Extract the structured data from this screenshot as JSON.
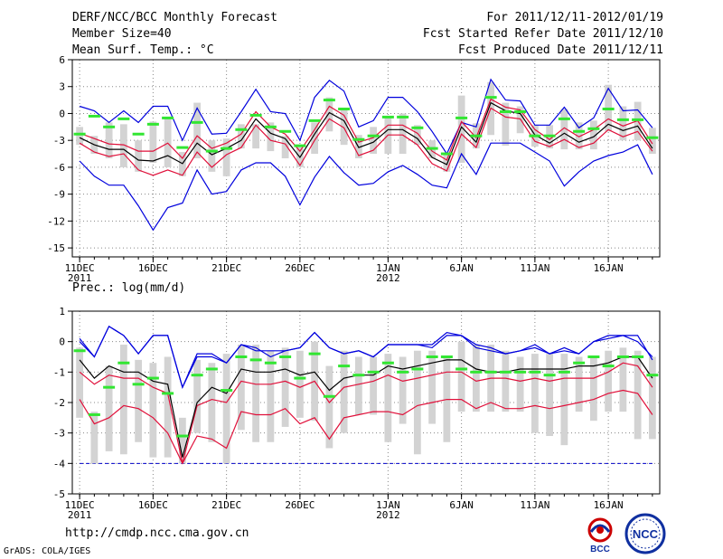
{
  "header": {
    "title": "DERF/NCC/BCC Monthly Forecast",
    "member_size": "Member Size=40",
    "variable": "Mean Surf. Temp.: °C",
    "period": "For 2011/12/11-2012/01/19",
    "refer_date": "Fcst Started Refer Date 2011/12/10",
    "produced_date": "Fcst Produced Date 2011/12/11"
  },
  "footer": {
    "url": "http://cmdp.ncc.cma.gov.cn",
    "credit": "GrADS: COLA/IGES",
    "logo_bcc": "BCC",
    "logo_ncc": "NCC"
  },
  "colors": {
    "box": "#d3d3d3",
    "median": "#32e632",
    "mean": "#000000",
    "spread": "#e0103a",
    "minmax": "#0000dd",
    "grid": "#888888",
    "dashed_line": "#0000cc"
  },
  "chart_data": [
    {
      "type": "box",
      "title": "Mean Surf. Temp.: °C",
      "ylim": [
        -16,
        6
      ],
      "yticks": [
        6,
        3,
        0,
        -3,
        -6,
        -9,
        -12,
        -15
      ],
      "xlabels": [
        {
          "day": 1,
          "label": "11DEC",
          "sub": "2011"
        },
        {
          "day": 6,
          "label": "16DEC",
          "sub": ""
        },
        {
          "day": 11,
          "label": "21DEC",
          "sub": ""
        },
        {
          "day": 16,
          "label": "26DEC",
          "sub": ""
        },
        {
          "day": 22,
          "label": "1JAN",
          "sub": "2012"
        },
        {
          "day": 27,
          "label": "6JAN",
          "sub": ""
        },
        {
          "day": 32,
          "label": "11JAN",
          "sub": ""
        },
        {
          "day": 37,
          "label": "16JAN",
          "sub": ""
        }
      ],
      "x": [
        1,
        2,
        3,
        4,
        5,
        6,
        7,
        8,
        9,
        10,
        11,
        12,
        13,
        14,
        15,
        16,
        17,
        18,
        19,
        20,
        21,
        22,
        23,
        24,
        25,
        26,
        27,
        28,
        29,
        30,
        31,
        32,
        33,
        34,
        35,
        36,
        37,
        38,
        39,
        40
      ],
      "max": [
        0.8,
        0.3,
        -1,
        0.3,
        -1,
        0.8,
        0.8,
        -3,
        0.6,
        -2.3,
        -2.2,
        0.2,
        2.7,
        0.2,
        0,
        -3,
        1.8,
        3.7,
        2.5,
        -1.5,
        -0.8,
        1.8,
        1.8,
        0.2,
        -2,
        -4.5,
        -1,
        -1.5,
        3.8,
        1.5,
        1.4,
        -1.3,
        -1.3,
        0.7,
        -1.6,
        -0.5,
        2.8,
        0.3,
        0.4,
        -1.6
      ],
      "box_top": [
        -1.5,
        -2.5,
        -1,
        -1.2,
        -3,
        -0.9,
        -0.5,
        -4.3,
        1.2,
        -3,
        -2.8,
        -1.2,
        -1.2,
        -1,
        -2.5,
        -3.5,
        -1,
        1.8,
        0.6,
        -2.4,
        -1.5,
        -0.5,
        0,
        -1.3,
        -3,
        -4.5,
        2,
        -1.1,
        3.5,
        1.2,
        0.8,
        -1.3,
        -1.3,
        0.5,
        -1,
        -0.8,
        3.2,
        0.8,
        1.3,
        -1.6
      ],
      "box_bot": [
        -3.5,
        -4.5,
        -5,
        -6,
        -6.5,
        -5.5,
        -6,
        -7,
        -5,
        -6.5,
        -7,
        -3.9,
        -3.9,
        -4.2,
        -5,
        -6,
        -4.5,
        -2,
        -3.5,
        -5,
        -4.5,
        -4.5,
        -4.5,
        -3.5,
        -5,
        -6.5,
        -5.5,
        -3.9,
        -2.4,
        -3.6,
        -2.2,
        -3.7,
        -3.9,
        -4,
        -4,
        -4,
        -2,
        -3,
        -3,
        -4.5
      ],
      "median": [
        -2.3,
        -0.3,
        -1.5,
        -0.6,
        -2.3,
        -1.2,
        -0.5,
        -3.8,
        -1,
        -4.2,
        -3.9,
        -1.8,
        -0.2,
        -1.5,
        -2,
        -3.6,
        -0.8,
        1.5,
        0.5,
        -2.9,
        -2.5,
        -0.4,
        -0.4,
        -1.6,
        -3.9,
        -4.5,
        -0.5,
        -2.5,
        1.8,
        0.2,
        0.2,
        -2.5,
        -2.5,
        -0.6,
        -2,
        -1.7,
        0.5,
        -0.7,
        -0.7,
        -2.7
      ],
      "mean": [
        -2.7,
        -3.5,
        -4,
        -4,
        -5.2,
        -5.3,
        -4.7,
        -5.6,
        -3.3,
        -4.6,
        -3.9,
        -3,
        -0.6,
        -2.2,
        -2.8,
        -4.9,
        -2.3,
        0.1,
        -0.8,
        -3.8,
        -3.2,
        -1.8,
        -1.8,
        -2.8,
        -4.9,
        -5.7,
        -1.5,
        -3.2,
        1.2,
        0.3,
        0,
        -2.4,
        -3.3,
        -2.2,
        -3.2,
        -2.6,
        -1.2,
        -1.9,
        -1.4,
        -3.9
      ],
      "spread_hi": [
        -2.2,
        -2.8,
        -3.4,
        -3.5,
        -4.2,
        -4.2,
        -3.3,
        -5,
        -2.5,
        -3.9,
        -3.3,
        -2.3,
        0.2,
        -1.5,
        -2.3,
        -4.2,
        -1.8,
        0.8,
        -0.2,
        -3.2,
        -2.7,
        -1.3,
        -1.3,
        -2.2,
        -4.2,
        -5.2,
        -0.9,
        -2.7,
        1.6,
        0.7,
        0.4,
        -1.8,
        -2.9,
        -1.6,
        -2.6,
        -1.8,
        -0.6,
        -1.4,
        -0.8,
        -3.4
      ],
      "spread_lo": [
        -3.3,
        -4.3,
        -4.8,
        -4.5,
        -6.3,
        -6.9,
        -6.3,
        -6.9,
        -4.3,
        -6,
        -4.6,
        -3.8,
        -1.3,
        -3,
        -3.4,
        -5.8,
        -3,
        -0.6,
        -1.6,
        -4.7,
        -4.1,
        -2.4,
        -2.4,
        -3.5,
        -5.6,
        -6.4,
        -2.3,
        -3.8,
        0.6,
        -0.4,
        -0.6,
        -3.1,
        -3.7,
        -2.9,
        -3.8,
        -3.3,
        -1.8,
        -2.6,
        -2,
        -4.2
      ],
      "minline": [
        -5.3,
        -7,
        -8,
        -8,
        -10.3,
        -13,
        -10.5,
        -10,
        -6.3,
        -9,
        -8.7,
        -6.3,
        -5.5,
        -5.5,
        -7,
        -10.2,
        -7.1,
        -4.8,
        -6.6,
        -8,
        -7.8,
        -6.5,
        -5.8,
        -6.8,
        -8,
        -8.3,
        -4.5,
        -6.8,
        -3.3,
        -3.3,
        -3.3,
        -4.3,
        -5.3,
        -8.1,
        -6.5,
        -5.3,
        -4.7,
        -4.3,
        -3.5,
        -6.8
      ]
    },
    {
      "type": "box",
      "title": "Prec.: log(mm/d)",
      "ylim": [
        -5,
        1
      ],
      "yticks": [
        1,
        0,
        -1,
        -2,
        -3,
        -4,
        -5
      ],
      "dashed_level": -4,
      "xlabels": [
        {
          "day": 1,
          "label": "11DEC",
          "sub": "2011"
        },
        {
          "day": 6,
          "label": "16DEC",
          "sub": ""
        },
        {
          "day": 11,
          "label": "21DEC",
          "sub": ""
        },
        {
          "day": 16,
          "label": "26DEC",
          "sub": ""
        },
        {
          "day": 22,
          "label": "1JAN",
          "sub": "2012"
        },
        {
          "day": 27,
          "label": "6JAN",
          "sub": ""
        },
        {
          "day": 32,
          "label": "11JAN",
          "sub": ""
        },
        {
          "day": 37,
          "label": "16JAN",
          "sub": ""
        }
      ],
      "x": [
        1,
        2,
        3,
        4,
        5,
        6,
        7,
        8,
        9,
        10,
        11,
        12,
        13,
        14,
        15,
        16,
        17,
        18,
        19,
        20,
        21,
        22,
        23,
        24,
        25,
        26,
        27,
        28,
        29,
        30,
        31,
        32,
        33,
        34,
        35,
        36,
        37,
        38,
        39,
        40
      ],
      "max": [
        0.1,
        -0.5,
        0.5,
        0.2,
        -0.4,
        0.2,
        0.2,
        -1.5,
        -0.4,
        -0.4,
        -0.7,
        -0.1,
        -0.2,
        -0.5,
        -0.3,
        -0.2,
        0.3,
        -0.2,
        -0.4,
        -0.3,
        -0.5,
        -0.1,
        -0.1,
        -0.1,
        -0.2,
        0.2,
        0.2,
        -0.1,
        -0.2,
        -0.4,
        -0.3,
        -0.1,
        -0.4,
        -0.3,
        -0.4,
        0,
        0.1,
        0.2,
        0.2,
        -0.6
      ],
      "box_top": [
        -0.2,
        -2.3,
        -0.8,
        -0.1,
        -0.6,
        -0.7,
        -0.5,
        -2.5,
        -0.6,
        -0.7,
        -0.4,
        -0.1,
        -0.1,
        -0.3,
        -0.2,
        -0.3,
        0,
        -0.8,
        -0.3,
        -0.5,
        -0.5,
        -0.4,
        -0.5,
        -0.3,
        -0.3,
        -0.5,
        0,
        -0.1,
        -0.1,
        -0.3,
        -0.5,
        -0.4,
        -0.4,
        -0.4,
        -0.5,
        -0.5,
        -0.3,
        -0.2,
        -0.3,
        -0.5
      ],
      "box_bot": [
        -2.5,
        -4,
        -3.6,
        -3.7,
        -3.3,
        -3.8,
        -3.8,
        -4,
        -3,
        -3.3,
        -4,
        -2.9,
        -3.3,
        -3.3,
        -2.8,
        -2.5,
        -2.6,
        -3.5,
        -3,
        -2.4,
        -2.4,
        -3.3,
        -2.7,
        -3.7,
        -2.7,
        -3.3,
        -2.3,
        -2.3,
        -2.3,
        -2.3,
        -2.3,
        -3,
        -3.1,
        -3.4,
        -2.3,
        -2.6,
        -2.3,
        -2.3,
        -3.2,
        -3.2
      ],
      "median": [
        -0.3,
        -2.4,
        -1.5,
        -0.7,
        -1.4,
        -1.2,
        -1.7,
        -3.1,
        -1.1,
        -0.9,
        -1.6,
        -0.5,
        -0.6,
        -0.7,
        -0.5,
        -1.2,
        -0.4,
        -1.8,
        -0.8,
        -1.1,
        -1,
        -0.7,
        -1,
        -0.9,
        -0.5,
        -0.5,
        -0.9,
        -1,
        -1,
        -1,
        -1,
        -1,
        -1.1,
        -1,
        -0.7,
        -0.5,
        -0.8,
        -0.5,
        -0.5,
        -1.1
      ],
      "mean": [
        -0.6,
        -1.2,
        -0.8,
        -1,
        -1,
        -1.3,
        -1.4,
        -3.8,
        -2,
        -1.5,
        -1.7,
        -0.9,
        -1,
        -1,
        -0.9,
        -1.1,
        -1,
        -1.6,
        -1.2,
        -1.1,
        -1.1,
        -0.8,
        -0.9,
        -0.8,
        -0.7,
        -0.6,
        -0.6,
        -0.9,
        -1,
        -1,
        -0.9,
        -0.9,
        -0.9,
        -0.9,
        -0.8,
        -0.8,
        -0.7,
        -0.5,
        -0.5,
        -1.2
      ],
      "spread_hi": [
        -1,
        -1.4,
        -1.1,
        -1.2,
        -1.2,
        -1.5,
        -1.7,
        -4,
        -2.1,
        -1.9,
        -2,
        -1.3,
        -1.4,
        -1.4,
        -1.3,
        -1.5,
        -1.3,
        -2,
        -1.5,
        -1.4,
        -1.3,
        -1.1,
        -1.3,
        -1.2,
        -1.1,
        -1,
        -1,
        -1.3,
        -1.2,
        -1.2,
        -1.3,
        -1.2,
        -1.3,
        -1.2,
        -1.2,
        -1.2,
        -1,
        -0.7,
        -0.8,
        -1.5
      ],
      "spread_lo": [
        -1.9,
        -2.7,
        -2.5,
        -2.1,
        -2.2,
        -2.5,
        -3,
        -4,
        -3.1,
        -3.2,
        -3.5,
        -2.3,
        -2.4,
        -2.4,
        -2.2,
        -2.7,
        -2.5,
        -3.2,
        -2.5,
        -2.4,
        -2.3,
        -2.3,
        -2.4,
        -2.1,
        -2,
        -1.9,
        -1.9,
        -2.2,
        -2,
        -2.2,
        -2.2,
        -2.1,
        -2.2,
        -2.1,
        -2,
        -1.9,
        -1.7,
        -1.6,
        -1.7,
        -2.4
      ],
      "minline": [
        0,
        -0.5,
        0.5,
        0.2,
        -0.4,
        0.2,
        0.2,
        -1.5,
        -0.5,
        -0.5,
        -0.7,
        -0.1,
        -0.3,
        -0.3,
        -0.3,
        -0.2,
        0.3,
        -0.2,
        -0.4,
        -0.3,
        -0.5,
        -0.1,
        -0.1,
        -0.1,
        -0.1,
        0.3,
        0.2,
        -0.2,
        -0.3,
        -0.4,
        -0.3,
        -0.2,
        -0.4,
        -0.2,
        -0.4,
        0,
        0.2,
        0.2,
        0,
        -0.5
      ]
    }
  ]
}
